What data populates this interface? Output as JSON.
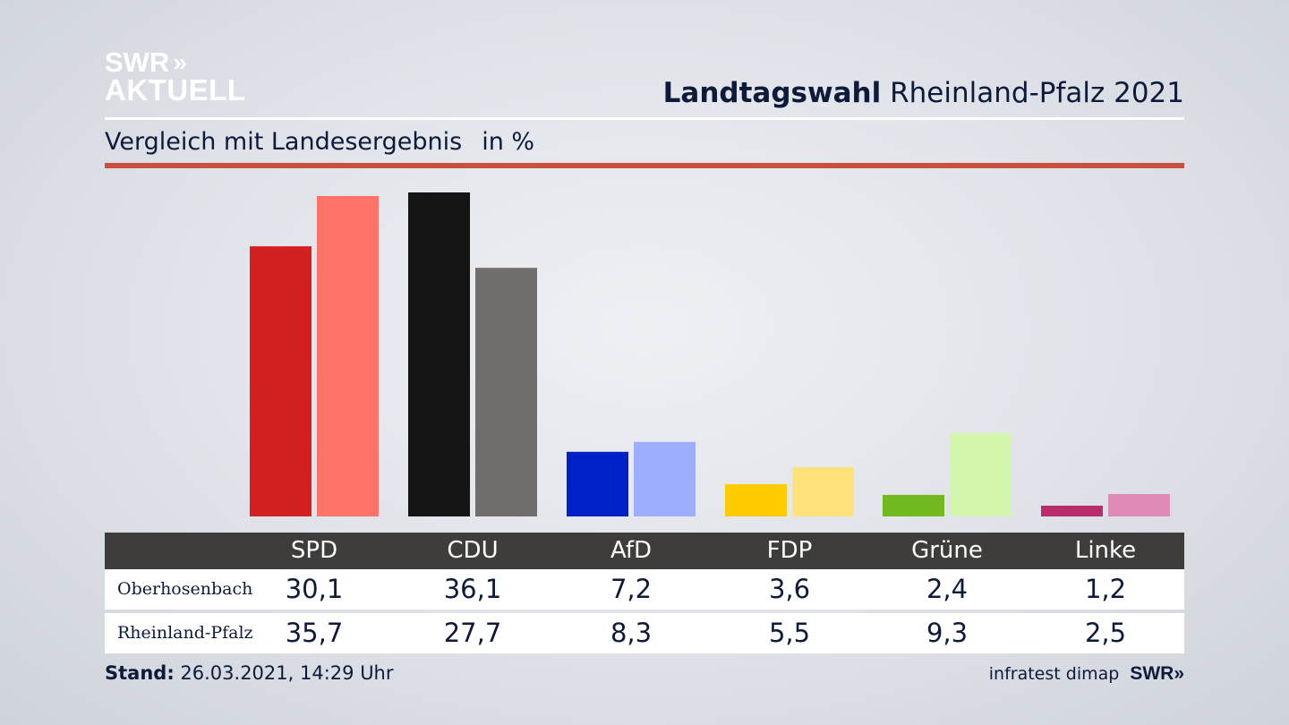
{
  "logo": {
    "line1": "SWR",
    "line2": "AKTUELL",
    "chevron": "»"
  },
  "header": {
    "title_bold": "Landtagswahl",
    "title_rest": "Rheinland-Pfalz 2021"
  },
  "subtitle": {
    "text": "Vergleich mit Landesergebnis",
    "unit": "in %"
  },
  "colors": {
    "rule_red": "#c8503c",
    "table_header_bg": "#3e3d3b"
  },
  "chart_data": {
    "type": "bar",
    "categories": [
      "SPD",
      "CDU",
      "AfD",
      "FDP",
      "Grüne",
      "Linke"
    ],
    "series": [
      {
        "name": "Oberhosenbach",
        "values": [
          30.1,
          36.1,
          7.2,
          3.6,
          2.4,
          1.2
        ],
        "colors": [
          "#d42020",
          "#141414",
          "#0020c8",
          "#ffcc00",
          "#72b820",
          "#b82c6c"
        ]
      },
      {
        "name": "Rheinland-Pfalz",
        "values": [
          35.7,
          27.7,
          8.3,
          5.5,
          9.3,
          2.5
        ],
        "colors": [
          "#ff7268",
          "#6f6e6c",
          "#9eaeff",
          "#ffe27a",
          "#d4f5ac",
          "#e08ab8"
        ]
      }
    ],
    "ylim": [
      0,
      36.1
    ],
    "grid": false
  },
  "table": {
    "headers": [
      "SPD",
      "CDU",
      "AfD",
      "FDP",
      "Grüne",
      "Linke"
    ],
    "rows": [
      {
        "label": "Oberhosenbach",
        "values": [
          "30,1",
          "36,1",
          "7,2",
          "3,6",
          "2,4",
          "1,2"
        ]
      },
      {
        "label": "Rheinland-Pfalz",
        "values": [
          "35,7",
          "27,7",
          "8,3",
          "5,5",
          "9,3",
          "2,5"
        ]
      }
    ]
  },
  "footer": {
    "stand_label": "Stand:",
    "stand_value": "26.03.2021, 14:29 Uhr",
    "source": "infratest dimap",
    "source_logo": "SWR",
    "source_chevron": "»"
  }
}
